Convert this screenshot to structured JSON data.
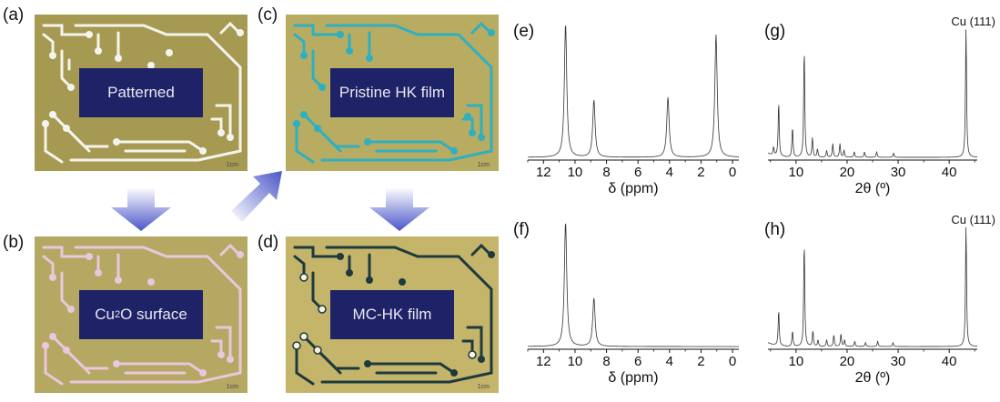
{
  "panels": {
    "a": {
      "letter": "(a)",
      "label": "Patterned",
      "scale": "1cm"
    },
    "b": {
      "letter": "(b)",
      "label_main": "Cu",
      "label_sub": "2",
      "label_rest": "O surface",
      "scale": "1cm"
    },
    "c": {
      "letter": "(c)",
      "label": "Pristine HK film",
      "scale": "1cm"
    },
    "d": {
      "letter": "(d)",
      "label": "MC-HK film",
      "scale": "1cm"
    }
  },
  "colors": {
    "board_bg": "#a69a52",
    "board_bg_b": "#b5a863",
    "board_bg_c": "#b8ab62",
    "board_bg_d": "#c4b56a",
    "trace_a": "#f4f4ee",
    "trace_b": "#e9c7dc",
    "trace_c": "#2fb0c0",
    "trace_d": "#1e3a3e",
    "label_box": "#1e2266",
    "arrow": "#4a56c8"
  },
  "chart_data": [
    {
      "panel": "(e)",
      "type": "line",
      "xlabel": "δ (ppm)",
      "x_reversed": true,
      "xlim": [
        13,
        -0.4
      ],
      "ticks": [
        12,
        10,
        8,
        6,
        4,
        2,
        0
      ],
      "peaks": [
        {
          "x": 10.6,
          "h": 0.98
        },
        {
          "x": 8.8,
          "h": 0.42
        },
        {
          "x": 4.1,
          "h": 0.44
        },
        {
          "x": 1.05,
          "h": 0.9
        }
      ]
    },
    {
      "panel": "(f)",
      "type": "line",
      "xlabel": "δ (ppm)",
      "x_reversed": true,
      "xlim": [
        13,
        -0.4
      ],
      "ticks": [
        12,
        10,
        8,
        6,
        4,
        2,
        0
      ],
      "peaks": [
        {
          "x": 10.6,
          "h": 0.98
        },
        {
          "x": 8.8,
          "h": 0.38
        }
      ]
    },
    {
      "panel": "(g)",
      "type": "line",
      "xlabel": "2θ (º)",
      "annotation": "Cu (111)",
      "xlim": [
        4.5,
        45.5
      ],
      "ticks": [
        10,
        20,
        30,
        40
      ],
      "peaks": [
        {
          "x": 5.6,
          "h": 0.06
        },
        {
          "x": 6.6,
          "h": 0.4
        },
        {
          "x": 9.3,
          "h": 0.22
        },
        {
          "x": 11.6,
          "h": 0.8
        },
        {
          "x": 13.2,
          "h": 0.14
        },
        {
          "x": 14.2,
          "h": 0.06
        },
        {
          "x": 16.0,
          "h": 0.05
        },
        {
          "x": 17.2,
          "h": 0.1
        },
        {
          "x": 18.6,
          "h": 0.1
        },
        {
          "x": 19.4,
          "h": 0.05
        },
        {
          "x": 21.4,
          "h": 0.04
        },
        {
          "x": 23.4,
          "h": 0.04
        },
        {
          "x": 25.8,
          "h": 0.04
        },
        {
          "x": 29.1,
          "h": 0.03
        },
        {
          "x": 43.3,
          "h": 0.95
        }
      ]
    },
    {
      "panel": "(h)",
      "type": "line",
      "xlabel": "2θ (º)",
      "annotation": "Cu (111)",
      "xlim": [
        4.5,
        45.5
      ],
      "ticks": [
        10,
        20,
        30,
        40
      ],
      "peaks": [
        {
          "x": 6.6,
          "h": 0.28
        },
        {
          "x": 9.3,
          "h": 0.12
        },
        {
          "x": 11.6,
          "h": 0.82
        },
        {
          "x": 13.3,
          "h": 0.12
        },
        {
          "x": 14.3,
          "h": 0.05
        },
        {
          "x": 16.0,
          "h": 0.05
        },
        {
          "x": 17.4,
          "h": 0.09
        },
        {
          "x": 18.8,
          "h": 0.1
        },
        {
          "x": 19.5,
          "h": 0.05
        },
        {
          "x": 21.5,
          "h": 0.04
        },
        {
          "x": 23.6,
          "h": 0.03
        },
        {
          "x": 26.0,
          "h": 0.04
        },
        {
          "x": 29.0,
          "h": 0.03
        },
        {
          "x": 43.3,
          "h": 0.95
        }
      ]
    }
  ]
}
